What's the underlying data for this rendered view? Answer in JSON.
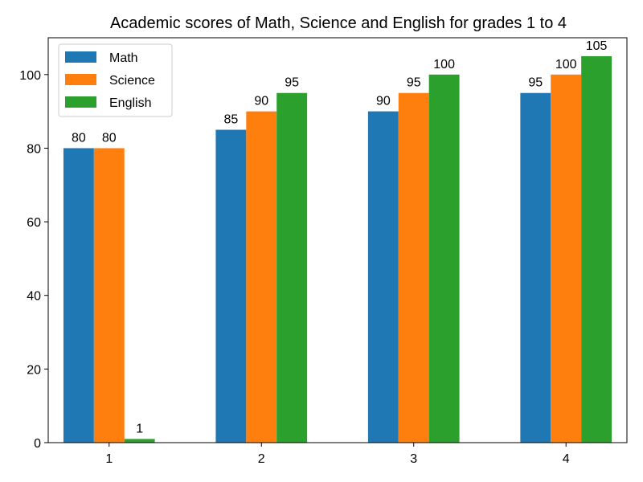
{
  "chart_data": {
    "type": "bar",
    "title": "Academic scores of Math, Science and English for grades 1 to 4",
    "xlabel": "",
    "ylabel": "",
    "categories": [
      "1",
      "2",
      "3",
      "4"
    ],
    "series": [
      {
        "name": "Math",
        "color": "#1f77b4",
        "values": [
          80,
          85,
          90,
          95
        ]
      },
      {
        "name": "Science",
        "color": "#ff7f0e",
        "values": [
          80,
          90,
          95,
          100
        ]
      },
      {
        "name": "English",
        "color": "#2ca02c",
        "values": [
          1,
          95,
          100,
          105
        ]
      }
    ],
    "ylim": [
      0,
      110
    ],
    "yticks": [
      0,
      20,
      40,
      60,
      80,
      100
    ],
    "grid": false,
    "legend_position": "top-left",
    "data_labels": true
  }
}
